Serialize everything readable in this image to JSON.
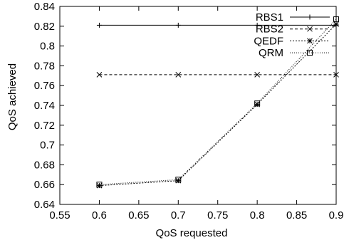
{
  "chart_data": {
    "type": "line",
    "xlabel": "QoS requested",
    "ylabel": "QoS achieved",
    "xlim": [
      0.55,
      0.9
    ],
    "ylim": [
      0.64,
      0.84
    ],
    "x_ticks": [
      0.55,
      0.6,
      0.65,
      0.7,
      0.75,
      0.8,
      0.85,
      0.9
    ],
    "x_tick_labels": [
      "0.55",
      "0.6",
      "0.65",
      "0.7",
      "0.75",
      "0.8",
      "0.85",
      "0.9"
    ],
    "y_ticks": [
      0.64,
      0.66,
      0.68,
      0.7,
      0.72,
      0.74,
      0.76,
      0.78,
      0.8,
      0.82,
      0.84
    ],
    "y_tick_labels": [
      "0.64",
      "0.66",
      "0.68",
      "0.7",
      "0.72",
      "0.74",
      "0.76",
      "0.78",
      "0.8",
      "0.82",
      "0.84"
    ],
    "grid": false,
    "legend_position": "top-right",
    "series": [
      {
        "name": "RBS1",
        "marker": "plus",
        "line_style": "solid",
        "x": [
          0.6,
          0.7,
          0.8,
          0.9
        ],
        "y": [
          0.821,
          0.821,
          0.821,
          0.821
        ]
      },
      {
        "name": "RBS2",
        "marker": "cross",
        "line_style": "dashed",
        "x": [
          0.6,
          0.7,
          0.8,
          0.9
        ],
        "y": [
          0.771,
          0.771,
          0.771,
          0.771
        ]
      },
      {
        "name": "QEDF",
        "marker": "star",
        "line_style": "dotted",
        "x": [
          0.6,
          0.7,
          0.8,
          0.9
        ],
        "y": [
          0.659,
          0.664,
          0.741,
          0.822
        ]
      },
      {
        "name": "QRM",
        "marker": "square",
        "line_style": "fine-dotted",
        "x": [
          0.6,
          0.7,
          0.8,
          0.9
        ],
        "y": [
          0.66,
          0.665,
          0.742,
          0.827
        ]
      }
    ]
  }
}
